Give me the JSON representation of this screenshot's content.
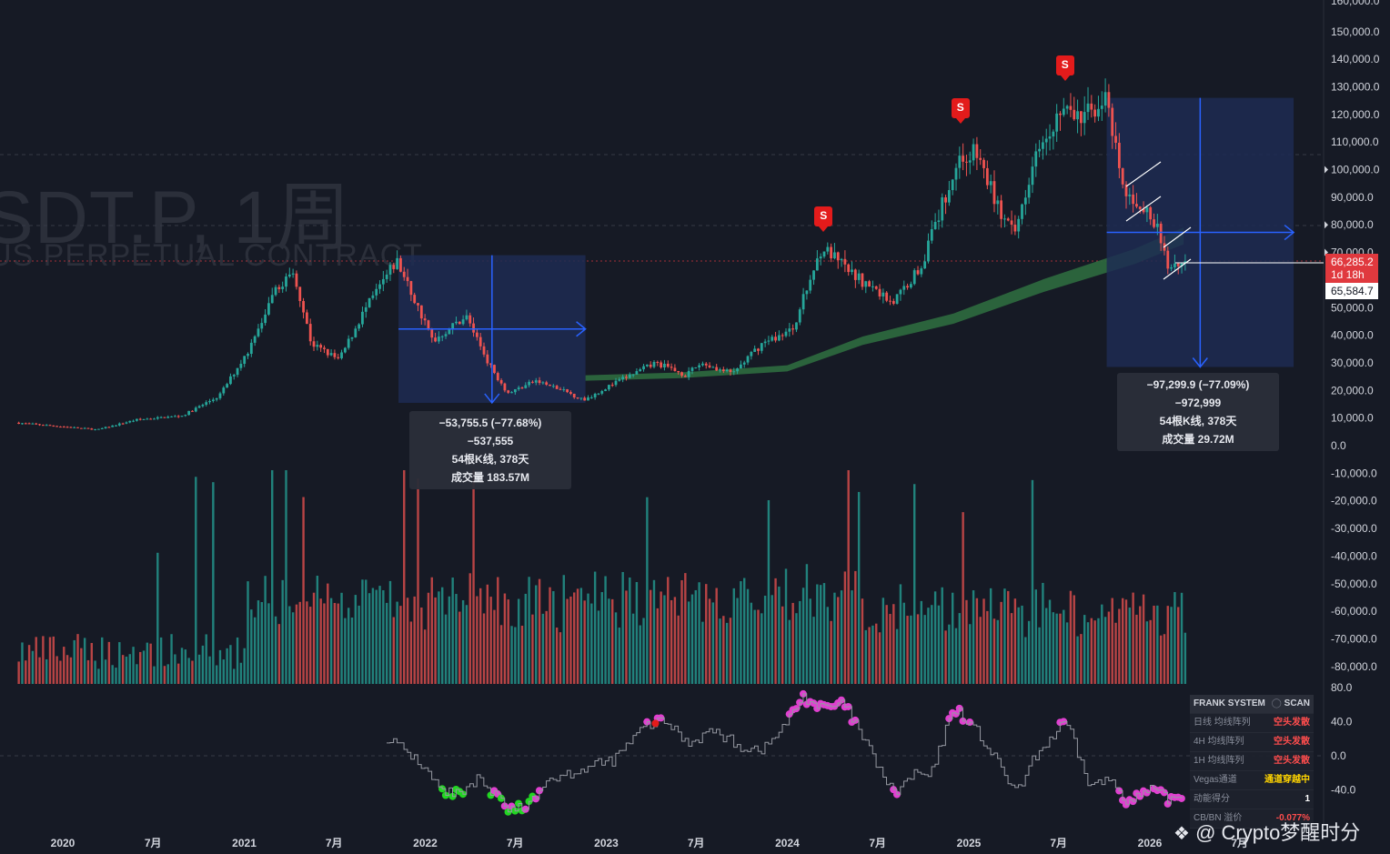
{
  "header": {
    "symbol_title": "SDT.P, 1周",
    "symbol_subtitle": "US PERPETUAL CONTRACT"
  },
  "colors": {
    "background": "#161a25",
    "up": "#26a69a",
    "down": "#ef5350",
    "measure_box": "#1d2b52",
    "measure_line": "#2962ff",
    "ma_band": "#2e6b3f",
    "signal": "#e31b1b",
    "osc_magenta": "#e040d0",
    "osc_green": "#22d622"
  },
  "chart_data": [
    {
      "type": "candlestick",
      "timeframe": "1周",
      "x_tick_labels": [
        "2020",
        "7月",
        "2021",
        "7月",
        "2022",
        "7月",
        "2023",
        "7月",
        "2024",
        "7月",
        "2025",
        "7月",
        "2026",
        "7月"
      ],
      "y_tick_values": [
        150000,
        140000,
        130000,
        120000,
        110000,
        100000,
        90000,
        80000,
        70000,
        60000,
        50000,
        40000,
        30000,
        20000,
        10000,
        0,
        -10000,
        -20000,
        -30000,
        -40000,
        -50000,
        -60000,
        -70000,
        -80000
      ],
      "y_tick_labels": [
        "150,000.0",
        "140,000.0",
        "130,000.0",
        "120,000.0",
        "110,000.0",
        "100,000.0",
        "90,000.0",
        "80,000.0",
        "70,000.0",
        "60,000.0",
        "50,000.0",
        "40,000.0",
        "30,000.0",
        "20,000.0",
        "10,000.0",
        "0.0",
        "-10,000.0",
        "-20,000.0",
        "-30,000.0",
        "-40,000.0",
        "-50,000.0",
        "-60,000.0",
        "-70,000.0",
        "-80,000.0"
      ],
      "y_top_partial_label": "160,000.0",
      "price_path": [
        [
          "2019-10-01",
          8300
        ],
        [
          "2019-12-15",
          7200
        ],
        [
          "2020-03-15",
          5800
        ],
        [
          "2020-06-01",
          9400
        ],
        [
          "2020-09-01",
          10800
        ],
        [
          "2020-11-15",
          18000
        ],
        [
          "2021-01-15",
          35000
        ],
        [
          "2021-03-15",
          58000
        ],
        [
          "2021-04-15",
          63000
        ],
        [
          "2021-05-20",
          37000
        ],
        [
          "2021-07-15",
          31000
        ],
        [
          "2021-09-01",
          48000
        ],
        [
          "2021-11-08",
          67000
        ],
        [
          "2022-01-20",
          38000
        ],
        [
          "2022-03-28",
          47000
        ],
        [
          "2022-05-15",
          29000
        ],
        [
          "2022-06-20",
          19000
        ],
        [
          "2022-08-15",
          23500
        ],
        [
          "2022-10-15",
          19500
        ],
        [
          "2022-11-20",
          16500
        ],
        [
          "2023-01-30",
          23500
        ],
        [
          "2023-04-15",
          30000
        ],
        [
          "2023-06-15",
          25500
        ],
        [
          "2023-07-15",
          30000
        ],
        [
          "2023-09-15",
          26000
        ],
        [
          "2023-11-15",
          37000
        ],
        [
          "2024-01-15",
          42000
        ],
        [
          "2024-03-14",
          72000
        ],
        [
          "2024-05-15",
          62000
        ],
        [
          "2024-08-05",
          52000
        ],
        [
          "2024-09-30",
          65000
        ],
        [
          "2024-12-15",
          104000
        ],
        [
          "2025-01-20",
          106000
        ],
        [
          "2025-03-15",
          82000
        ],
        [
          "2025-04-07",
          76000
        ],
        [
          "2025-05-22",
          110000
        ],
        [
          "2025-07-14",
          122000
        ],
        [
          "2025-08-15",
          118000
        ],
        [
          "2025-10-06",
          126000
        ],
        [
          "2025-11-15",
          90000
        ],
        [
          "2025-12-15",
          88000
        ],
        [
          "2026-01-20",
          78000
        ],
        [
          "2026-02-10",
          65000
        ],
        [
          "2026-03-10",
          66285
        ]
      ],
      "volume_label": "成交量",
      "last_price": {
        "value": 66285.2,
        "label": "66,285.2",
        "countdown": "1d 18h"
      },
      "marked_price": {
        "value": 65584.7,
        "label": "65,584.7"
      },
      "signals": [
        {
          "date": "2024-03-14",
          "label": "S"
        },
        {
          "date": "2024-12-15",
          "label": "S"
        },
        {
          "date": "2025-07-14",
          "label": "S"
        }
      ],
      "measurements": [
        {
          "start_date": "2021-11-08",
          "end_date": "2022-11-20",
          "high": 69000,
          "low": 15500,
          "line1": "−53,755.5 (−77.68%) −537,555",
          "line2": "54根K线, 378天",
          "line3": "成交量 183.57M"
        },
        {
          "start_date": "2025-10-06",
          "end_date": "2026-10-18",
          "high": 126000,
          "low": 28500,
          "line1": "−97,299.9 (−77.09%) −972,999",
          "line2": "54根K线, 378天",
          "line3": "成交量 29.72M"
        }
      ]
    },
    {
      "type": "line",
      "name": "FRANK SYSTEM oscillator",
      "y_tick_values": [
        80,
        40,
        0,
        -40
      ],
      "y_tick_labels": [
        "80.0",
        "40.0",
        "0.0",
        "-40.0"
      ],
      "path": [
        [
          "2021-10-15",
          22
        ],
        [
          "2021-12-15",
          -5
        ],
        [
          "2022-02-01",
          -40
        ],
        [
          "2022-03-15",
          -48
        ],
        [
          "2022-04-20",
          -25
        ],
        [
          "2022-06-15",
          -62
        ],
        [
          "2022-07-25",
          -60
        ],
        [
          "2022-09-01",
          -28
        ],
        [
          "2022-11-15",
          -15
        ],
        [
          "2023-01-15",
          -5
        ],
        [
          "2023-03-20",
          35
        ],
        [
          "2023-05-01",
          40
        ],
        [
          "2023-06-15",
          15
        ],
        [
          "2023-08-01",
          30
        ],
        [
          "2023-10-01",
          10
        ],
        [
          "2023-11-15",
          8
        ],
        [
          "2024-01-01",
          40
        ],
        [
          "2024-02-01",
          70
        ],
        [
          "2024-03-10",
          55
        ],
        [
          "2024-04-25",
          60
        ],
        [
          "2024-06-01",
          20
        ],
        [
          "2024-08-01",
          -45
        ],
        [
          "2024-09-15",
          -20
        ],
        [
          "2024-10-15",
          -25
        ],
        [
          "2024-12-01",
          58
        ],
        [
          "2025-01-15",
          30
        ],
        [
          "2025-03-01",
          -10
        ],
        [
          "2025-04-07",
          -45
        ],
        [
          "2025-05-15",
          0
        ],
        [
          "2025-07-15",
          40
        ],
        [
          "2025-09-01",
          -35
        ],
        [
          "2025-10-15",
          -28
        ],
        [
          "2025-11-20",
          -55
        ],
        [
          "2026-01-01",
          -40
        ],
        [
          "2026-02-10",
          -52
        ],
        [
          "2026-03-10",
          -45
        ]
      ]
    }
  ],
  "panel": {
    "title": "FRANK SYSTEM",
    "scan_label": "SCAN",
    "rows": [
      {
        "label": "日线 均线阵列",
        "value": "空头发散",
        "color": "#ff4d4d"
      },
      {
        "label": "4H 均线阵列",
        "value": "空头发散",
        "color": "#ff4d4d"
      },
      {
        "label": "1H 均线阵列",
        "value": "空头发散",
        "color": "#ff4d4d"
      },
      {
        "label": "Vegas通道",
        "value": "通道穿越中",
        "color": "#ffd400"
      },
      {
        "label": "动能得分",
        "value": "1",
        "color": "#ffffff"
      },
      {
        "label": "CB/BN 溢价",
        "value": "-0.077%",
        "color": "#ff4d4d"
      }
    ]
  },
  "watermark": "@ Crypto梦醒时分"
}
